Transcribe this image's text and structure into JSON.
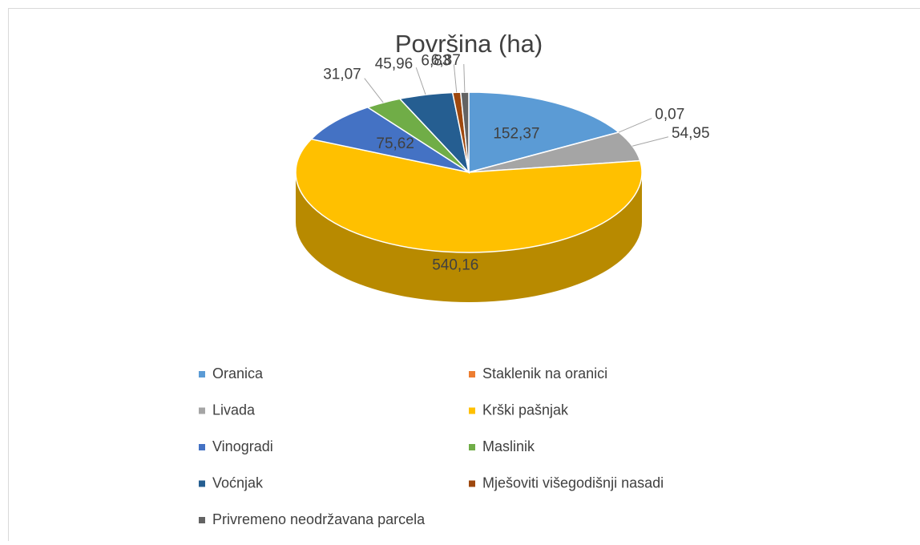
{
  "chart_data": {
    "type": "pie",
    "title": "Površina (ha)",
    "categories": [
      "Oranica",
      "Staklenik na oranici",
      "Livada",
      "Krški pašnjak",
      "Vinogradi",
      "Maslinik",
      "Voćnjak",
      "Mješoviti višegodišnji nasadi",
      "Privremeno neodržavana parcela"
    ],
    "values": [
      152.37,
      0.07,
      54.95,
      540.16,
      75.62,
      31.07,
      45.96,
      6.83,
      6.87
    ],
    "value_labels": [
      "152,37",
      "0,07",
      "54,95",
      "540,16",
      "75,62",
      "31,07",
      "45,96",
      "6,83",
      "6,87"
    ],
    "colors": [
      "#5b9bd5",
      "#ed7d31",
      "#a5a5a5",
      "#ffc000",
      "#4472c4",
      "#70ad47",
      "#255e91",
      "#9e480e",
      "#636363"
    ]
  }
}
